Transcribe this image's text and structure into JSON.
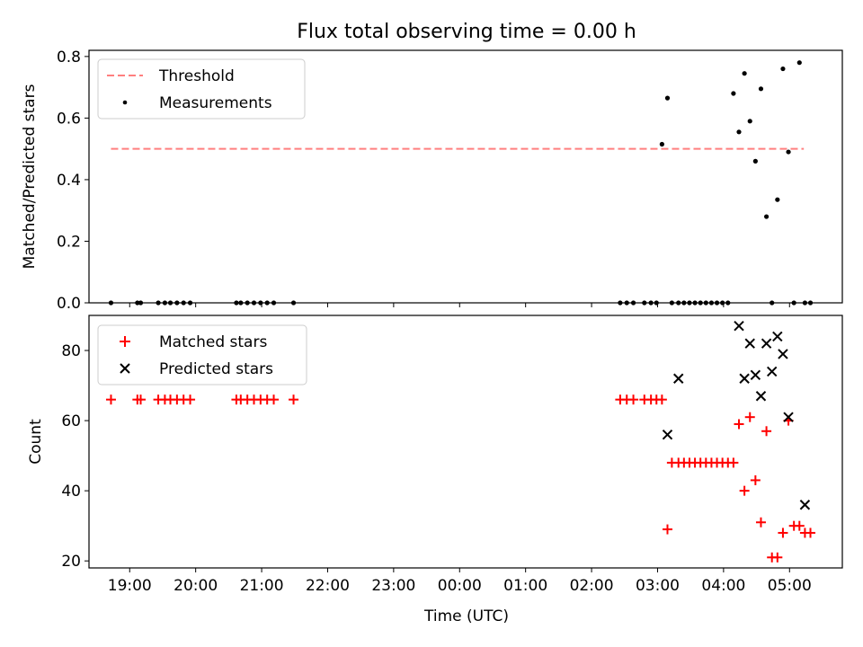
{
  "chart_data": [
    {
      "type": "scatter",
      "title": "Flux total observing time = 0.00 h",
      "xlabel": "",
      "ylabel": "Matched/Predicted stars",
      "xlim": [
        "18:23",
        "05:48"
      ],
      "ylim": [
        0,
        0.82
      ],
      "yticks": [
        "0.0",
        "0.2",
        "0.4",
        "0.6",
        "0.8"
      ],
      "grid": false,
      "legend": "upper left",
      "series": [
        {
          "name": "Threshold",
          "kind": "dashed-line",
          "color": "#ff7f7f",
          "x": [
            "18:43",
            "05:13"
          ],
          "y": [
            0.5,
            0.5
          ]
        },
        {
          "name": "Measurements",
          "kind": "points",
          "color": "#000000",
          "x": [
            "18:43",
            "19:07",
            "19:10",
            "19:26",
            "19:32",
            "19:37",
            "19:43",
            "19:49",
            "19:55",
            "20:37",
            "20:41",
            "20:47",
            "20:53",
            "20:59",
            "21:05",
            "21:11",
            "21:29",
            "02:26",
            "02:32",
            "02:38",
            "02:48",
            "02:54",
            "02:59",
            "03:04",
            "03:09",
            "03:13",
            "03:19",
            "03:24",
            "03:29",
            "03:34",
            "03:39",
            "03:44",
            "03:49",
            "03:54",
            "03:59",
            "04:04",
            "04:09",
            "04:14",
            "04:19",
            "04:24",
            "04:29",
            "04:34",
            "04:39",
            "04:44",
            "04:49",
            "04:54",
            "04:59",
            "05:04",
            "05:09",
            "05:14",
            "05:19"
          ],
          "y": [
            0,
            0,
            0,
            0,
            0,
            0,
            0,
            0,
            0,
            0,
            0,
            0,
            0,
            0,
            0,
            0,
            0,
            0,
            0,
            0,
            0,
            0,
            0,
            0.515,
            0.665,
            0,
            0,
            0,
            0,
            0,
            0,
            0,
            0,
            0,
            0,
            0,
            0.68,
            0.555,
            0.745,
            0.59,
            0.46,
            0.695,
            0.28,
            0,
            0.335,
            0.76,
            0.49,
            0,
            0.78,
            0,
            0
          ]
        }
      ]
    },
    {
      "type": "scatter",
      "title": "",
      "xlabel": "Time (UTC)",
      "ylabel": "Count",
      "xlim": [
        "18:23",
        "05:48"
      ],
      "ylim": [
        18,
        90
      ],
      "yticks": [
        "20",
        "40",
        "60",
        "80"
      ],
      "xticks": [
        "19:00",
        "20:00",
        "21:00",
        "22:00",
        "23:00",
        "00:00",
        "01:00",
        "02:00",
        "03:00",
        "04:00",
        "05:00"
      ],
      "grid": false,
      "legend": "upper left",
      "series": [
        {
          "name": "Matched stars",
          "kind": "plus",
          "color": "#ff0000",
          "x": [
            "18:43",
            "19:07",
            "19:10",
            "19:26",
            "19:32",
            "19:37",
            "19:43",
            "19:49",
            "19:55",
            "20:37",
            "20:41",
            "20:47",
            "20:53",
            "20:59",
            "21:05",
            "21:11",
            "21:29",
            "02:26",
            "02:32",
            "02:38",
            "02:48",
            "02:54",
            "02:59",
            "03:04",
            "03:09",
            "03:13",
            "03:19",
            "03:24",
            "03:29",
            "03:34",
            "03:39",
            "03:44",
            "03:49",
            "03:54",
            "03:59",
            "04:04",
            "04:09",
            "04:14",
            "04:19",
            "04:24",
            "04:29",
            "04:34",
            "04:39",
            "04:44",
            "04:49",
            "04:54",
            "04:59",
            "05:04",
            "05:09",
            "05:14",
            "05:19"
          ],
          "y": [
            66,
            66,
            66,
            66,
            66,
            66,
            66,
            66,
            66,
            66,
            66,
            66,
            66,
            66,
            66,
            66,
            66,
            66,
            66,
            66,
            66,
            66,
            66,
            66,
            29,
            48,
            48,
            48,
            48,
            48,
            48,
            48,
            48,
            48,
            48,
            48,
            48,
            59,
            40,
            61,
            43,
            31,
            57,
            21,
            21,
            28,
            60,
            30,
            30,
            28,
            28
          ]
        },
        {
          "name": "Predicted stars",
          "kind": "x",
          "color": "#000000",
          "x": [
            "03:09",
            "03:19",
            "04:14",
            "04:19",
            "04:24",
            "04:29",
            "04:34",
            "04:39",
            "04:44",
            "04:49",
            "04:54",
            "04:59",
            "05:14"
          ],
          "y": [
            56,
            72,
            87,
            72,
            82,
            73,
            67,
            82,
            74,
            84,
            79,
            61,
            36
          ]
        }
      ]
    }
  ]
}
